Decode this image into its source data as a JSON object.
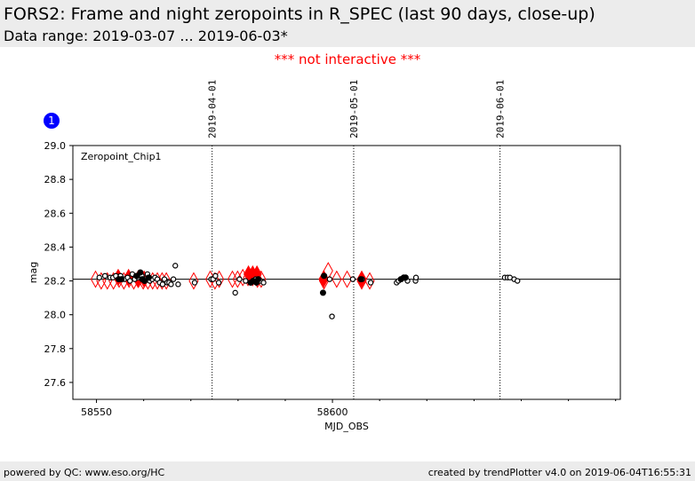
{
  "header": {
    "title": "FORS2: Frame and night zeropoints in R_SPEC (last 90 days, close-up)",
    "subtitle": "Data range: 2019-03-07 ... 2019-06-03*"
  },
  "notice": "*** not interactive ***",
  "badge": "1",
  "footer": {
    "left": "powered by QC: www.eso.org/HC",
    "right": "created by trendPlotter v4.0 on 2019-06-04T16:55:31"
  },
  "colors": {
    "marker_red": "#ff0000",
    "marker_black": "#000000",
    "badge_blue": "#0000ff"
  },
  "chart_data": {
    "type": "scatter",
    "panel_label": "Zeropoint_Chip1",
    "xlabel": "MJD_OBS",
    "ylabel": "mag",
    "xlim": [
      58545,
      58661
    ],
    "ylim": [
      27.5,
      29.0
    ],
    "x_ticks": [
      58550,
      58600
    ],
    "y_ticks": [
      27.6,
      27.8,
      28.0,
      28.2,
      28.4,
      28.6,
      28.8,
      29.0
    ],
    "reference_line": 28.21,
    "date_markers": [
      {
        "x": 58574.5,
        "label": "2019-04-01"
      },
      {
        "x": 58604.5,
        "label": "2019-05-01"
      },
      {
        "x": 58635.5,
        "label": "2019-06-01"
      }
    ],
    "series": [
      {
        "marker": "open-diamond-red",
        "x": [
          58549.8,
          58551.0,
          58552.3,
          58553.6,
          58554.8,
          58555.8,
          58556.9,
          58557.9,
          58558.9,
          58559.9,
          58560.9,
          58561.9,
          58562.9,
          58563.9,
          58564.8,
          58570.6,
          58574.1,
          58575.1,
          58576.0,
          58578.8,
          58579.9,
          58581.0,
          58582.1,
          58583.1,
          58584.1,
          58584.9,
          58598.2,
          58599.1,
          58600.9,
          58603.1,
          58606.2,
          58607.9
        ],
        "y": [
          28.21,
          28.2,
          28.2,
          28.2,
          28.21,
          28.2,
          28.21,
          28.2,
          28.21,
          28.2,
          28.2,
          28.2,
          28.2,
          28.2,
          28.2,
          28.2,
          28.21,
          28.2,
          28.21,
          28.21,
          28.21,
          28.22,
          28.22,
          28.22,
          28.21,
          28.21,
          28.2,
          28.26,
          28.21,
          28.21,
          28.2,
          28.2
        ]
      },
      {
        "marker": "filled-diamond-red",
        "x": [
          58554.6,
          58556.8,
          58558.8,
          58560.1,
          58582.2,
          58583.1,
          58584.0,
          58598.1,
          58606.2
        ],
        "y": [
          28.22,
          28.22,
          28.21,
          28.21,
          28.24,
          28.24,
          28.24,
          28.21,
          28.21
        ]
      },
      {
        "marker": "open-circle-black",
        "x": [
          58550.6,
          58551.8,
          58552.9,
          58553.5,
          58554.1,
          58555.1,
          58555.9,
          58556.6,
          58557.1,
          58557.6,
          58558.1,
          58558.4,
          58558.8,
          58559.6,
          58560.2,
          58560.8,
          58561.3,
          58561.8,
          58562.4,
          58562.9,
          58563.4,
          58564.0,
          58564.4,
          58565.0,
          58565.4,
          58565.8,
          58566.3,
          58566.7,
          58567.3,
          58570.8,
          58574.3,
          58574.7,
          58575.2,
          58575.9,
          58579.4,
          58580.3,
          58581.6,
          58582.6,
          58583.7,
          58584.7,
          58585.4,
          58598.3,
          58599.4,
          58599.9,
          58604.3,
          58606.3,
          58608.1,
          58613.6,
          58614.0,
          58614.6,
          58615.9,
          58617.6,
          58617.7,
          58636.5,
          58637.1,
          58637.6,
          58638.5,
          58639.2
        ],
        "y": [
          28.22,
          28.23,
          28.22,
          28.22,
          28.23,
          28.23,
          28.21,
          28.22,
          28.2,
          28.24,
          28.21,
          28.23,
          28.22,
          28.23,
          28.21,
          28.24,
          28.2,
          28.21,
          28.22,
          28.21,
          28.19,
          28.18,
          28.21,
          28.19,
          28.19,
          28.18,
          28.21,
          28.29,
          28.18,
          28.19,
          28.21,
          28.21,
          28.23,
          28.19,
          28.13,
          28.21,
          28.2,
          28.19,
          28.21,
          28.2,
          28.19,
          28.23,
          28.21,
          27.99,
          28.21,
          28.21,
          28.19,
          28.19,
          28.2,
          28.21,
          28.2,
          28.2,
          28.22,
          28.22,
          28.22,
          28.22,
          28.21,
          28.2
        ]
      },
      {
        "marker": "filled-circle-black",
        "x": [
          58554.7,
          58555.3,
          58558.6,
          58559.3,
          58559.7,
          58560.2,
          58561.1,
          58582.7,
          58583.2,
          58583.9,
          58584.3,
          58598.0,
          58598.2,
          58606.0,
          58614.5,
          58615.1,
          58615.5
        ],
        "y": [
          28.21,
          28.21,
          28.23,
          28.25,
          28.21,
          28.2,
          28.22,
          28.19,
          28.2,
          28.19,
          28.21,
          28.13,
          28.23,
          28.21,
          28.21,
          28.22,
          28.22
        ]
      }
    ]
  }
}
